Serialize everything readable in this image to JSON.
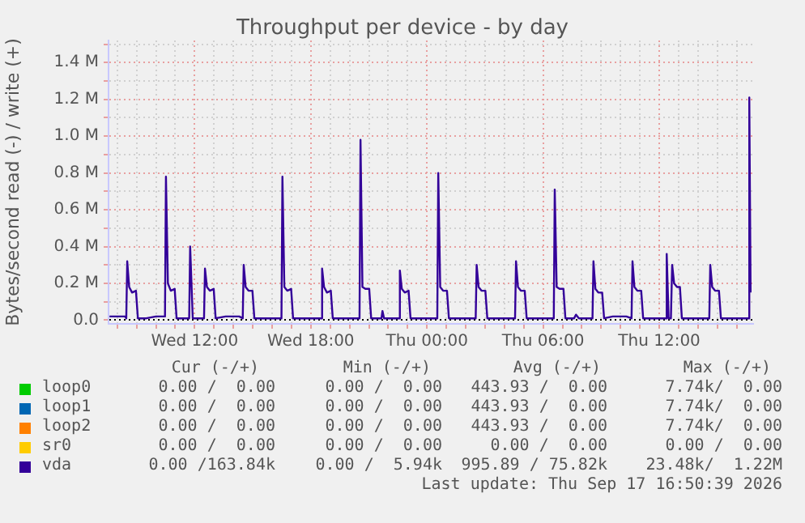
{
  "chart_data": {
    "type": "line",
    "title": "Throughput per device - by day",
    "ylabel": "Bytes/second read (-) / write (+)",
    "xlim": [
      "2026-09-16T07:33",
      "2026-09-17T16:51"
    ],
    "xticks": [
      {
        "value": "2026-09-16T08:00",
        "label": null
      },
      {
        "value": "2026-09-16T09:00",
        "label": null
      },
      {
        "value": "2026-09-16T10:00",
        "label": null
      },
      {
        "value": "2026-09-16T11:00",
        "label": null
      },
      {
        "value": "2026-09-16T12:00",
        "label": "Wed 12:00"
      },
      {
        "value": "2026-09-16T13:00",
        "label": null
      },
      {
        "value": "2026-09-16T14:00",
        "label": null
      },
      {
        "value": "2026-09-16T15:00",
        "label": null
      },
      {
        "value": "2026-09-16T16:00",
        "label": null
      },
      {
        "value": "2026-09-16T17:00",
        "label": null
      },
      {
        "value": "2026-09-16T18:00",
        "label": "Wed 18:00"
      },
      {
        "value": "2026-09-16T19:00",
        "label": null
      },
      {
        "value": "2026-09-16T20:00",
        "label": null
      },
      {
        "value": "2026-09-16T21:00",
        "label": null
      },
      {
        "value": "2026-09-16T22:00",
        "label": null
      },
      {
        "value": "2026-09-16T23:00",
        "label": null
      },
      {
        "value": "2026-09-17T00:00",
        "label": "Thu 00:00"
      },
      {
        "value": "2026-09-17T01:00",
        "label": null
      },
      {
        "value": "2026-09-17T02:00",
        "label": null
      },
      {
        "value": "2026-09-17T03:00",
        "label": null
      },
      {
        "value": "2026-09-17T04:00",
        "label": null
      },
      {
        "value": "2026-09-17T05:00",
        "label": null
      },
      {
        "value": "2026-09-17T06:00",
        "label": "Thu 06:00"
      },
      {
        "value": "2026-09-17T07:00",
        "label": null
      },
      {
        "value": "2026-09-17T08:00",
        "label": null
      },
      {
        "value": "2026-09-17T09:00",
        "label": null
      },
      {
        "value": "2026-09-17T10:00",
        "label": null
      },
      {
        "value": "2026-09-17T11:00",
        "label": null
      },
      {
        "value": "2026-09-17T12:00",
        "label": "Thu 12:00"
      },
      {
        "value": "2026-09-17T13:00",
        "label": null
      },
      {
        "value": "2026-09-17T14:00",
        "label": null
      },
      {
        "value": "2026-09-17T15:00",
        "label": null
      },
      {
        "value": "2026-09-17T16:00",
        "label": null
      }
    ],
    "ylim": [
      -0.02,
      1.52
    ],
    "yticks": [
      {
        "value": 0,
        "label": "0.0"
      },
      {
        "value": 0.1,
        "label": null
      },
      {
        "value": 0.2,
        "label": "0.2 M"
      },
      {
        "value": 0.3,
        "label": null
      },
      {
        "value": 0.4,
        "label": "0.4 M"
      },
      {
        "value": 0.5,
        "label": null
      },
      {
        "value": 0.6,
        "label": "0.6 M"
      },
      {
        "value": 0.7,
        "label": null
      },
      {
        "value": 0.8,
        "label": "0.8 M"
      },
      {
        "value": 0.9,
        "label": null
      },
      {
        "value": 1.0,
        "label": "1.0 M"
      },
      {
        "value": 1.1,
        "label": null
      },
      {
        "value": 1.2,
        "label": "1.2 M"
      },
      {
        "value": 1.3,
        "label": null
      },
      {
        "value": 1.4,
        "label": "1.4 M"
      },
      {
        "value": 1.5,
        "label": null
      }
    ],
    "grid": true,
    "legend": "bottom",
    "marker": "none",
    "line_style": "solid",
    "series": [
      {
        "name": "loop0",
        "color": "#00cc00"
      },
      {
        "name": "loop1",
        "color": "#0066b3"
      },
      {
        "name": "loop2",
        "color": "#ff8000"
      },
      {
        "name": "sr0",
        "color": "#ffcc00"
      },
      {
        "name": "vda",
        "color": "#330099",
        "x": [
          "2026-09-16T07:36",
          "2026-09-16T08:24",
          "2026-09-16T08:28",
          "2026-09-16T08:31",
          "2026-09-16T08:37",
          "2026-09-16T08:46",
          "2026-09-16T08:58",
          "2026-09-16T09:04",
          "2026-09-16T09:30",
          "2026-09-16T10:00",
          "2026-09-16T10:28",
          "2026-09-16T10:31",
          "2026-09-16T10:37",
          "2026-09-16T10:46",
          "2026-09-16T10:58",
          "2026-09-16T11:04",
          "2026-09-16T11:43",
          "2026-09-16T11:46",
          "2026-09-16T11:54",
          "2026-09-16T12:29",
          "2026-09-16T12:32",
          "2026-09-16T12:38",
          "2026-09-16T12:47",
          "2026-09-16T12:59",
          "2026-09-16T13:05",
          "2026-09-16T13:36",
          "2026-09-16T14:18",
          "2026-09-16T14:29",
          "2026-09-16T14:32",
          "2026-09-16T14:38",
          "2026-09-16T14:47",
          "2026-09-16T14:59",
          "2026-09-16T15:05",
          "2026-09-16T16:29",
          "2026-09-16T16:32",
          "2026-09-16T16:38",
          "2026-09-16T16:47",
          "2026-09-16T16:59",
          "2026-09-16T17:05",
          "2026-09-16T18:32",
          "2026-09-16T18:35",
          "2026-09-16T18:41",
          "2026-09-16T18:50",
          "2026-09-16T19:02",
          "2026-09-16T19:08",
          "2026-09-16T20:31",
          "2026-09-16T20:34",
          "2026-09-16T20:40",
          "2026-09-16T20:49",
          "2026-09-16T21:01",
          "2026-09-16T21:07",
          "2026-09-16T21:39",
          "2026-09-16T21:42",
          "2026-09-16T21:47",
          "2026-09-16T22:33",
          "2026-09-16T22:36",
          "2026-09-16T22:42",
          "2026-09-16T22:51",
          "2026-09-16T23:03",
          "2026-09-16T23:09",
          "2026-09-17T00:32",
          "2026-09-17T00:35",
          "2026-09-17T00:41",
          "2026-09-17T00:50",
          "2026-09-17T01:02",
          "2026-09-17T01:08",
          "2026-09-17T02:31",
          "2026-09-17T02:34",
          "2026-09-17T02:40",
          "2026-09-17T02:49",
          "2026-09-17T03:01",
          "2026-09-17T03:07",
          "2026-09-17T04:33",
          "2026-09-17T04:36",
          "2026-09-17T04:42",
          "2026-09-17T04:51",
          "2026-09-17T05:03",
          "2026-09-17T05:09",
          "2026-09-17T06:33",
          "2026-09-17T06:36",
          "2026-09-17T06:42",
          "2026-09-17T06:51",
          "2026-09-17T07:03",
          "2026-09-17T07:09",
          "2026-09-17T07:36",
          "2026-09-17T07:42",
          "2026-09-17T07:51",
          "2026-09-17T08:33",
          "2026-09-17T08:36",
          "2026-09-17T08:42",
          "2026-09-17T08:51",
          "2026-09-17T09:03",
          "2026-09-17T09:09",
          "2026-09-17T09:36",
          "2026-09-17T10:18",
          "2026-09-17T10:34",
          "2026-09-17T10:37",
          "2026-09-17T10:43",
          "2026-09-17T10:52",
          "2026-09-17T11:04",
          "2026-09-17T11:10",
          "2026-09-17T12:20",
          "2026-09-17T12:23",
          "2026-09-17T12:29",
          "2026-09-17T12:36",
          "2026-09-17T12:40",
          "2026-09-17T12:46",
          "2026-09-17T12:55",
          "2026-09-17T13:04",
          "2026-09-17T13:10",
          "2026-09-17T14:35",
          "2026-09-17T14:38",
          "2026-09-17T14:44",
          "2026-09-17T14:53",
          "2026-09-17T15:05",
          "2026-09-17T15:11",
          "2026-09-17T16:36",
          "2026-09-17T16:39",
          "2026-09-17T16:43"
        ],
        "values": [
          0.02,
          0.02,
          0.01,
          0.32,
          0.18,
          0.15,
          0.16,
          0.01,
          0.01,
          0.02,
          0.02,
          0.78,
          0.2,
          0.16,
          0.17,
          0.01,
          0.01,
          0.4,
          0.01,
          0.01,
          0.28,
          0.18,
          0.16,
          0.17,
          0.01,
          0.02,
          0.02,
          0.01,
          0.3,
          0.18,
          0.16,
          0.16,
          0.01,
          0.01,
          0.78,
          0.18,
          0.16,
          0.17,
          0.01,
          0.01,
          0.28,
          0.18,
          0.15,
          0.16,
          0.01,
          0.01,
          0.98,
          0.18,
          0.17,
          0.17,
          0.01,
          0.01,
          0.05,
          0.01,
          0.01,
          0.27,
          0.17,
          0.15,
          0.16,
          0.01,
          0.01,
          0.8,
          0.18,
          0.16,
          0.16,
          0.01,
          0.01,
          0.3,
          0.18,
          0.16,
          0.16,
          0.01,
          0.01,
          0.32,
          0.18,
          0.16,
          0.16,
          0.01,
          0.01,
          0.71,
          0.18,
          0.17,
          0.17,
          0.01,
          0.01,
          0.03,
          0.01,
          0.01,
          0.32,
          0.17,
          0.15,
          0.15,
          0.01,
          0.02,
          0.02,
          0.01,
          0.32,
          0.18,
          0.16,
          0.16,
          0.01,
          0.01,
          0.36,
          0.01,
          0.01,
          0.3,
          0.2,
          0.18,
          0.18,
          0.01,
          0.01,
          0.3,
          0.18,
          0.16,
          0.16,
          0.01,
          0.01,
          1.21,
          0.15
        ]
      }
    ],
    "annotations": [
      "Cur (-/+)",
      "Min (-/+)",
      "Avg (-/+)",
      "Max (-/+)",
      "0.00 /  0.00",
      "0.00 /  0.00",
      "443.93 /  0.00",
      "7.74k/  0.00",
      "0.00 /  0.00",
      "0.00 /  0.00",
      "443.93 /  0.00",
      "7.74k/  0.00",
      "0.00 /  0.00",
      "0.00 /  0.00",
      "443.93 /  0.00",
      "7.74k/  0.00",
      "0.00 /  0.00",
      "0.00 /  0.00",
      "0.00 /  0.00",
      "0.00 /  0.00",
      "0.00 /163.84k",
      "0.00 /  5.94k",
      "995.89 / 75.82k",
      "23.48k/  1.22M",
      "Last update: Thu Sep 17 16:50:39 2026"
    ]
  }
}
